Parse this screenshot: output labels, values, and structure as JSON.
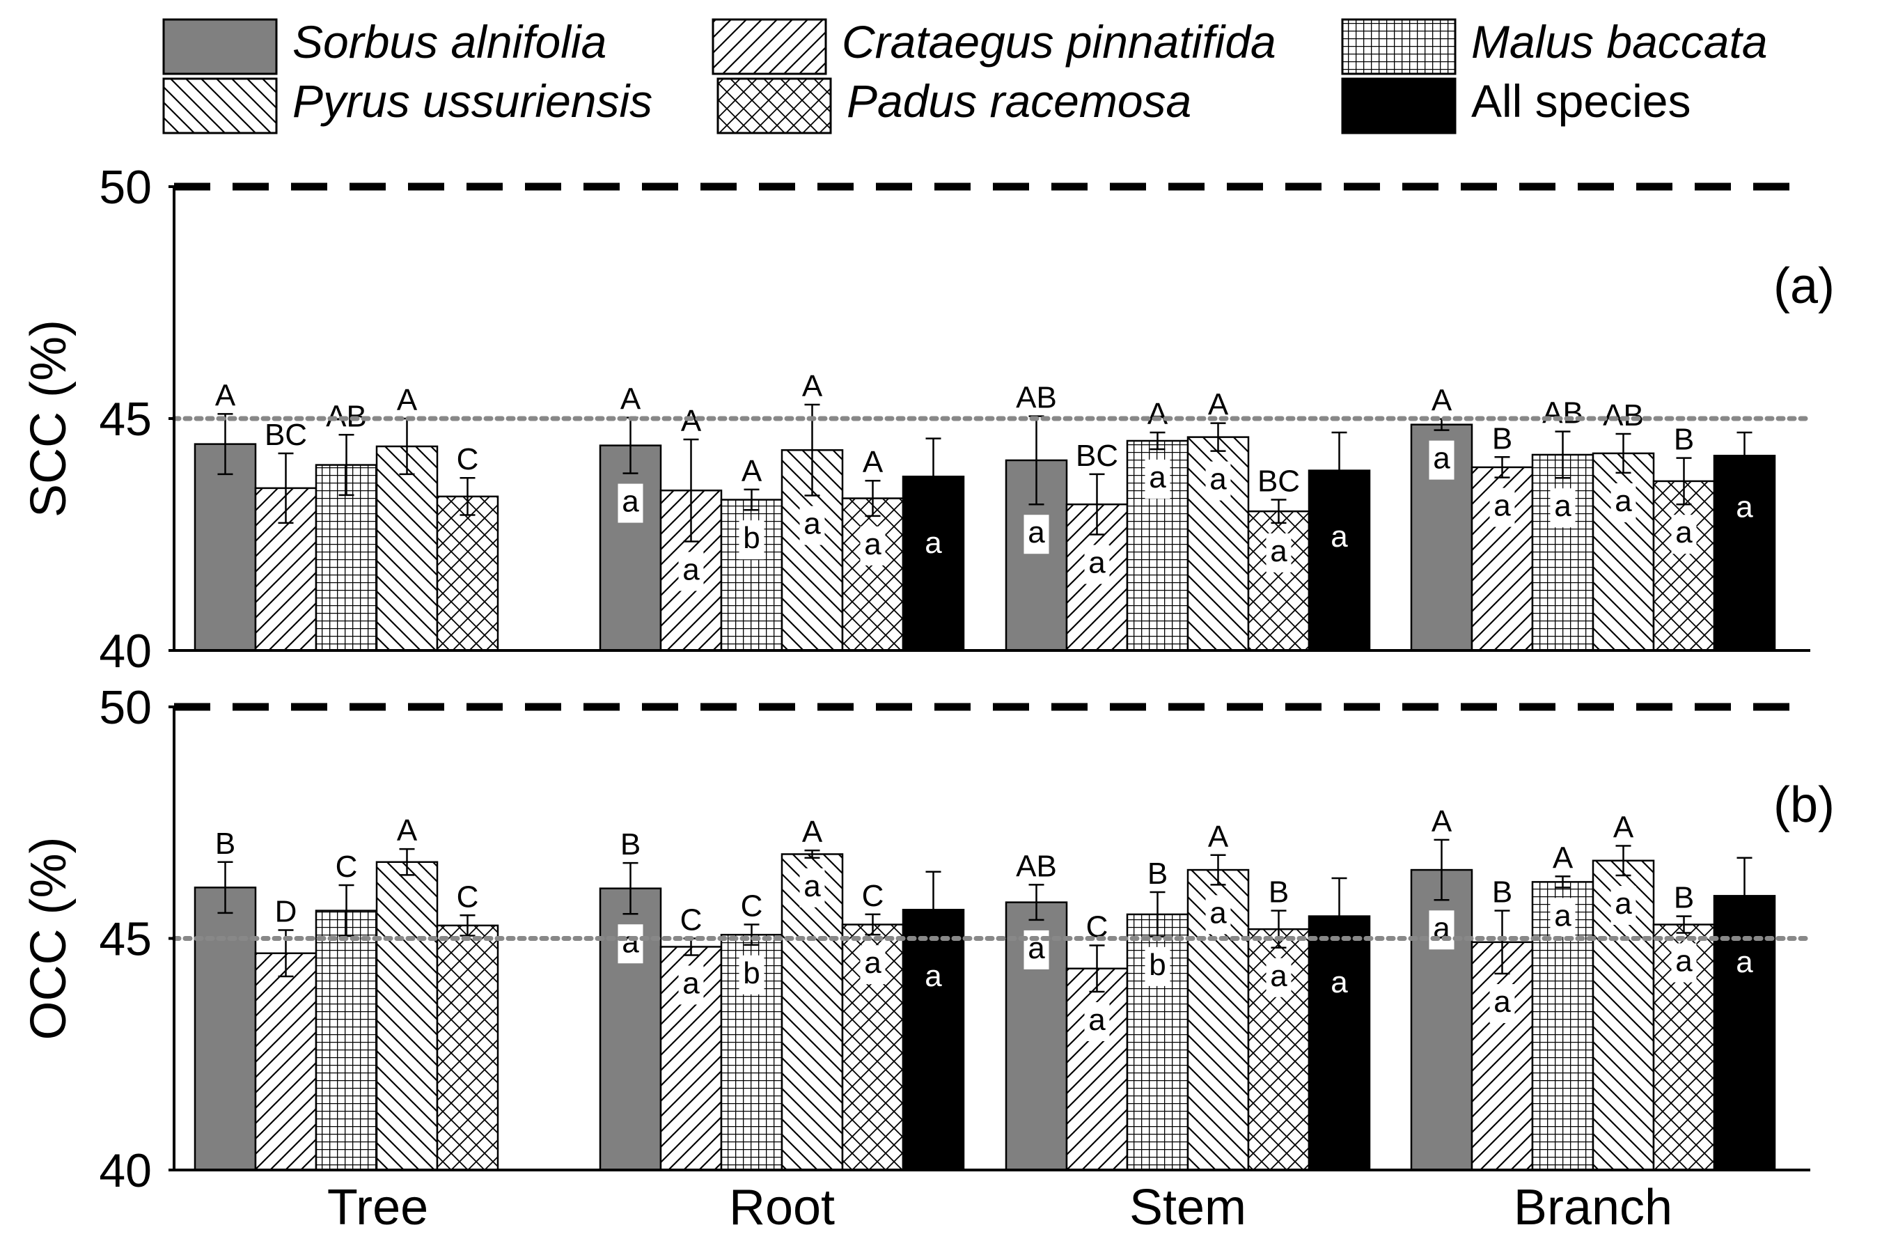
{
  "legend": [
    {
      "key": "sorbus",
      "label": "Sorbus alnifolia",
      "italic": true
    },
    {
      "key": "crataegus",
      "label": "Crataegus pinnatifida",
      "italic": true
    },
    {
      "key": "malus",
      "label": "Malus baccata",
      "italic": true
    },
    {
      "key": "pyrus",
      "label": "Pyrus ussuriensis",
      "italic": true
    },
    {
      "key": "padus",
      "label": "Padus racemosa",
      "italic": true
    },
    {
      "key": "all",
      "label": "All species",
      "italic": false
    }
  ],
  "series_styles": {
    "sorbus": {
      "fill": "#808080",
      "pattern": "solid"
    },
    "crataegus": {
      "fill": "#ffffff",
      "pattern": "forward-diagonal-hatch"
    },
    "malus": {
      "fill": "#ffffff",
      "pattern": "grid"
    },
    "pyrus": {
      "fill": "#ffffff",
      "pattern": "backward-diagonal-hatch"
    },
    "padus": {
      "fill": "#ffffff",
      "pattern": "crosshatch"
    },
    "all": {
      "fill": "#000000",
      "pattern": "solid"
    }
  },
  "reference_lines": {
    "dashed": {
      "value": 50,
      "color": "#000000"
    },
    "dotted": {
      "value": 45,
      "color": "#888888"
    }
  },
  "chart_data": [
    {
      "type": "bar",
      "panel_label": "(a)",
      "ylabel": "SCC (%)",
      "ylim": [
        40,
        50
      ],
      "yticks": [
        40,
        45,
        50
      ],
      "categories": [
        "Tree",
        "Root",
        "Stem",
        "Branch"
      ],
      "series": [
        {
          "key": "sorbus",
          "name": "Sorbus alnifolia",
          "values": [
            44.45,
            44.42,
            44.1,
            44.87
          ],
          "errors": [
            0.65,
            0.6,
            0.95,
            0.12
          ],
          "upper_letters": [
            "A",
            "A",
            "AB",
            "A"
          ],
          "inner_letters": [
            null,
            "a",
            "a",
            "a"
          ]
        },
        {
          "key": "crataegus",
          "name": "Crataegus pinnatifida",
          "values": [
            43.5,
            43.45,
            43.15,
            43.95
          ],
          "errors": [
            0.75,
            1.1,
            0.65,
            0.22
          ],
          "upper_letters": [
            "BC",
            "A",
            "BC",
            "B"
          ],
          "inner_letters": [
            null,
            "a",
            "a",
            "a"
          ]
        },
        {
          "key": "malus",
          "name": "Malus baccata",
          "values": [
            44.0,
            43.25,
            44.52,
            44.22
          ],
          "errors": [
            0.65,
            0.22,
            0.18,
            0.5
          ],
          "upper_letters": [
            "AB",
            "A",
            "A",
            "AB"
          ],
          "inner_letters": [
            null,
            "b",
            "a",
            "a"
          ]
        },
        {
          "key": "pyrus",
          "name": "Pyrus ussuriensis",
          "values": [
            44.4,
            44.32,
            44.6,
            44.25
          ],
          "errors": [
            0.6,
            0.98,
            0.3,
            0.42
          ],
          "upper_letters": [
            "A",
            "A",
            "A",
            "AB"
          ],
          "inner_letters": [
            null,
            "a",
            "a",
            "a"
          ]
        },
        {
          "key": "padus",
          "name": "Padus racemosa",
          "values": [
            43.32,
            43.28,
            43.0,
            43.65
          ],
          "errors": [
            0.4,
            0.38,
            0.25,
            0.5
          ],
          "upper_letters": [
            "C",
            "A",
            "BC",
            "B"
          ],
          "inner_letters": [
            null,
            "a",
            "a",
            "a"
          ]
        },
        {
          "key": "all",
          "name": "All species",
          "values": [
            null,
            43.75,
            43.88,
            44.2
          ],
          "errors": [
            null,
            0.82,
            0.82,
            0.5
          ],
          "upper_letters": [
            null,
            null,
            null,
            null
          ],
          "inner_letters": [
            null,
            "a",
            "a",
            "a"
          ]
        }
      ]
    },
    {
      "type": "bar",
      "panel_label": "(b)",
      "ylabel": "OCC (%)",
      "ylim": [
        40,
        50
      ],
      "yticks": [
        40,
        45,
        50
      ],
      "categories": [
        "Tree",
        "Root",
        "Stem",
        "Branch"
      ],
      "series": [
        {
          "key": "sorbus",
          "name": "Sorbus alnifolia",
          "values": [
            46.1,
            46.08,
            45.78,
            46.48
          ],
          "errors": [
            0.55,
            0.55,
            0.38,
            0.65
          ],
          "upper_letters": [
            "B",
            "B",
            "AB",
            "A"
          ],
          "inner_letters": [
            null,
            "a",
            "a",
            "a"
          ]
        },
        {
          "key": "crataegus",
          "name": "Crataegus pinnatifida",
          "values": [
            44.68,
            44.82,
            44.35,
            44.92
          ],
          "errors": [
            0.5,
            0.18,
            0.5,
            0.68
          ],
          "upper_letters": [
            "D",
            "C",
            "C",
            "B"
          ],
          "inner_letters": [
            null,
            "a",
            "a",
            "a"
          ]
        },
        {
          "key": "malus",
          "name": "Malus baccata",
          "values": [
            45.6,
            45.08,
            45.52,
            46.22
          ],
          "errors": [
            0.55,
            0.22,
            0.48,
            0.12
          ],
          "upper_letters": [
            "C",
            "C",
            "B",
            "A"
          ],
          "inner_letters": [
            null,
            "b",
            "b",
            "a"
          ]
        },
        {
          "key": "pyrus",
          "name": "Pyrus ussuriensis",
          "values": [
            46.65,
            46.82,
            46.48,
            46.68
          ],
          "errors": [
            0.28,
            0.08,
            0.32,
            0.32
          ],
          "upper_letters": [
            "A",
            "A",
            "A",
            "A"
          ],
          "inner_letters": [
            null,
            "a",
            "a",
            "a"
          ]
        },
        {
          "key": "padus",
          "name": "Padus racemosa",
          "values": [
            45.28,
            45.3,
            45.2,
            45.3
          ],
          "errors": [
            0.22,
            0.22,
            0.4,
            0.18
          ],
          "upper_letters": [
            "C",
            "C",
            "B",
            "B"
          ],
          "inner_letters": [
            null,
            "a",
            "a",
            "a"
          ]
        },
        {
          "key": "all",
          "name": "All species",
          "values": [
            null,
            45.62,
            45.48,
            45.92
          ],
          "errors": [
            null,
            0.82,
            0.82,
            0.82
          ],
          "upper_letters": [
            null,
            null,
            null,
            null
          ],
          "inner_letters": [
            null,
            "a",
            "a",
            "a"
          ]
        }
      ]
    }
  ]
}
